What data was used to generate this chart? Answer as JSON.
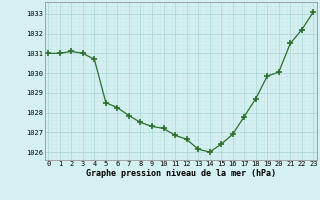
{
  "x": [
    0,
    1,
    2,
    3,
    4,
    5,
    6,
    7,
    8,
    9,
    10,
    11,
    12,
    13,
    14,
    15,
    16,
    17,
    18,
    19,
    20,
    21,
    22,
    23
  ],
  "y": [
    1031.0,
    1031.0,
    1031.1,
    1031.0,
    1030.7,
    1028.5,
    1028.25,
    1027.85,
    1027.5,
    1027.3,
    1027.2,
    1026.85,
    1026.65,
    1026.15,
    1026.0,
    1026.4,
    1026.9,
    1027.8,
    1028.7,
    1029.85,
    1030.05,
    1031.5,
    1032.2,
    1033.1
  ],
  "line_color": "#2d6e2d",
  "marker_color": "#2d6e2d",
  "bg_color": "#d4f0f0",
  "grid_major_color": "#b0d8d8",
  "grid_minor_color": "#c8e8e8",
  "ylabel_ticks": [
    1026,
    1027,
    1028,
    1029,
    1030,
    1031,
    1032,
    1033
  ],
  "xlabel_label": "Graphe pression niveau de la mer (hPa)",
  "xlabel_ticks": [
    0,
    1,
    2,
    3,
    4,
    5,
    6,
    7,
    8,
    9,
    10,
    11,
    12,
    13,
    14,
    15,
    16,
    17,
    18,
    19,
    20,
    21,
    22,
    23
  ],
  "ylim": [
    1025.6,
    1033.6
  ],
  "xlim": [
    -0.3,
    23.3
  ]
}
